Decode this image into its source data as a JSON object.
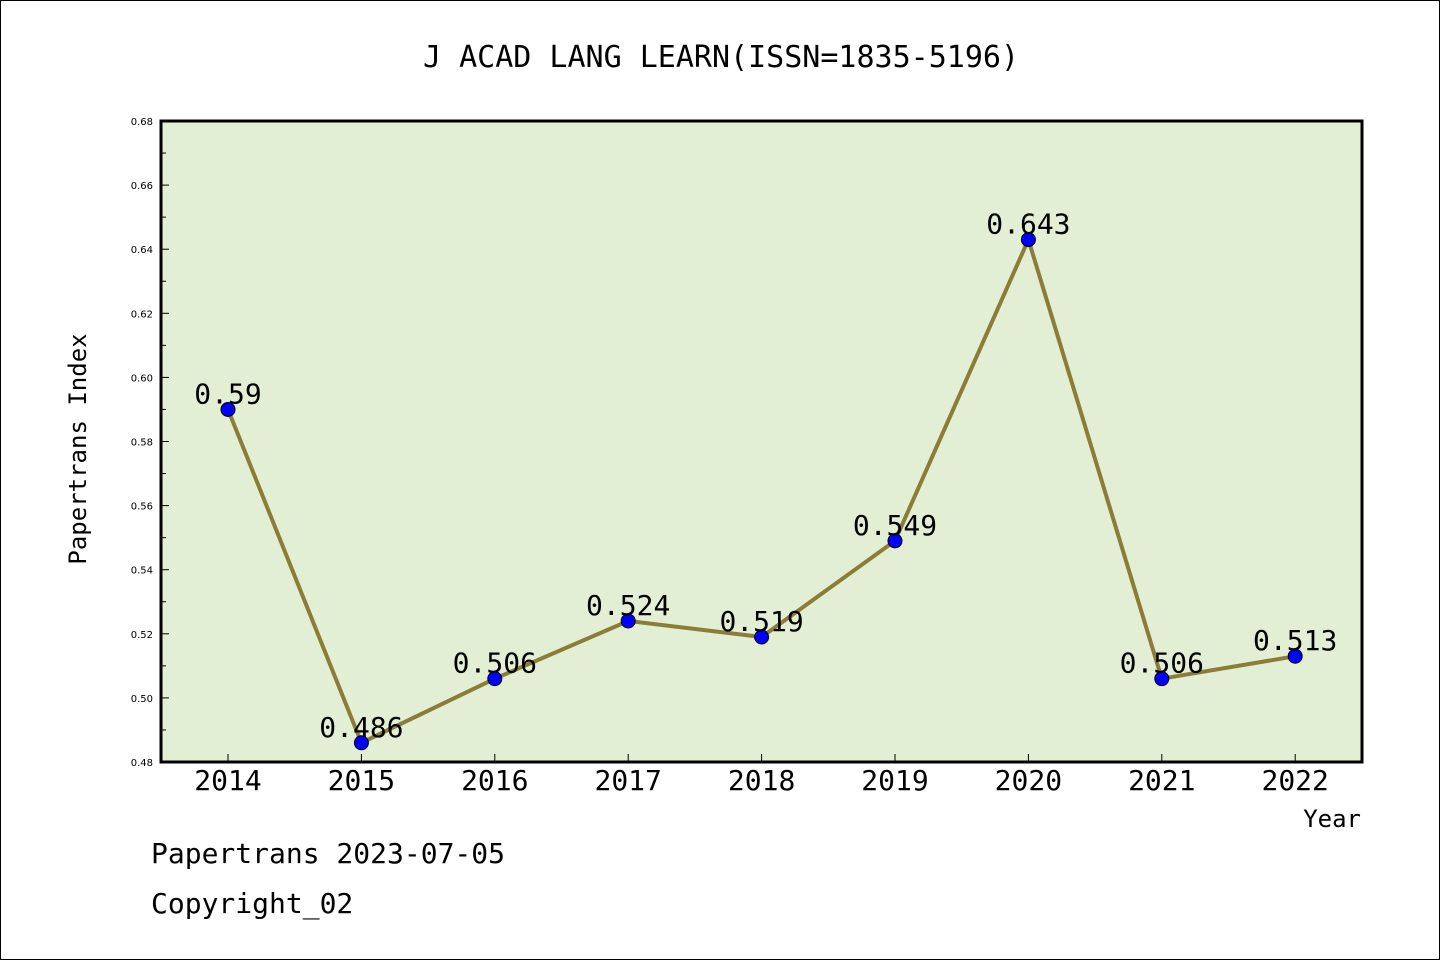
{
  "chart_data": {
    "type": "line",
    "title": "J ACAD LANG LEARN(ISSN=1835-5196)",
    "xlabel": "Year",
    "ylabel": "Papertrans Index",
    "categories": [
      "2014",
      "2015",
      "2016",
      "2017",
      "2018",
      "2019",
      "2020",
      "2021",
      "2022"
    ],
    "values": [
      0.59,
      0.486,
      0.506,
      0.524,
      0.519,
      0.549,
      0.643,
      0.506,
      0.513
    ],
    "data_labels": [
      "0.59",
      "0.486",
      "0.506",
      "0.524",
      "0.519",
      "0.549",
      "0.643",
      "0.506",
      "0.513"
    ],
    "ylim": [
      0.48,
      0.68
    ],
    "yticks": [
      "0.48",
      "0.50",
      "0.52",
      "0.54",
      "0.56",
      "0.58",
      "0.60",
      "0.62",
      "0.64",
      "0.66",
      "0.68"
    ],
    "grid": false,
    "legend": "none",
    "colors": {
      "plot_background": "#e2efd5",
      "line": "#8b7d35",
      "marker": "#0000ff",
      "axis": "#000000"
    }
  },
  "footer": {
    "line1": "Papertrans 2023-07-05",
    "line2": "Copyright_02"
  }
}
